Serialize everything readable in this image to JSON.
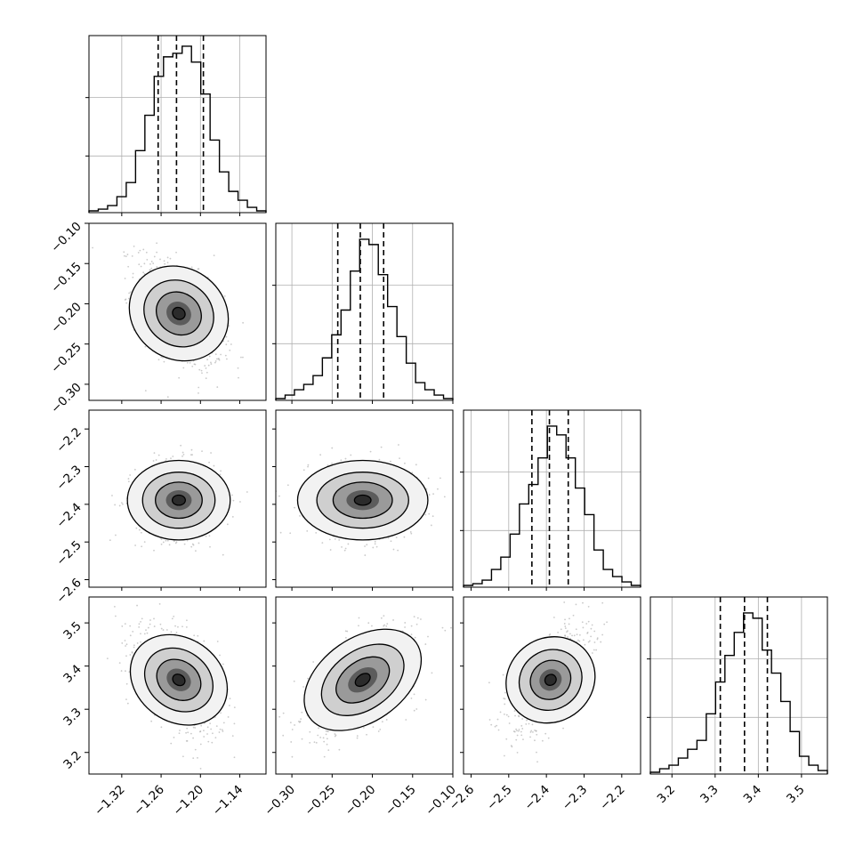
{
  "chart_data": {
    "type": "corner",
    "parameters": [
      {
        "range": [
          -1.37,
          -1.1
        ],
        "ticks": [
          -1.32,
          -1.26,
          -1.2,
          -1.14
        ],
        "tick_labels": [
          "−1.32",
          "−1.26",
          "−1.20",
          "−1.14"
        ],
        "quantiles": [
          -1.2645,
          -1.2365,
          -1.1955
        ],
        "hist": [
          1,
          2,
          4,
          9,
          17,
          35,
          55,
          77,
          88,
          90,
          94,
          85,
          67,
          41,
          23,
          12,
          7,
          3,
          1
        ]
      },
      {
        "range": [
          -0.32,
          -0.1
        ],
        "ticks": [
          -0.3,
          -0.25,
          -0.2,
          -0.15,
          -0.1
        ],
        "tick_labels": [
          "−0.30",
          "−0.25",
          "−0.20",
          "−0.15",
          "−0.10"
        ],
        "quantiles": [
          -0.243,
          -0.215,
          -0.186
        ],
        "hist": [
          1,
          3,
          6,
          9,
          14,
          24,
          37,
          51,
          73,
          91,
          88,
          71,
          53,
          36,
          21,
          10,
          6,
          3,
          1
        ]
      },
      {
        "range": [
          -2.62,
          -2.15
        ],
        "ticks": [
          -2.6,
          -2.5,
          -2.4,
          -2.3,
          -2.2
        ],
        "tick_labels": [
          "−2.6",
          "−2.5",
          "−2.4",
          "−2.3",
          "−2.2"
        ],
        "quantiles": [
          -2.4385,
          -2.392,
          -2.342
        ],
        "hist": [
          1,
          2,
          4,
          10,
          17,
          30,
          47,
          58,
          73,
          91,
          86,
          73,
          56,
          41,
          21,
          10,
          6,
          3,
          1
        ]
      },
      {
        "range": [
          3.15,
          3.56
        ],
        "ticks": [
          3.2,
          3.3,
          3.4,
          3.5
        ],
        "tick_labels": [
          "3.2",
          "3.3",
          "3.4",
          "3.5"
        ],
        "quantiles": [
          3.312,
          3.368,
          3.421
        ],
        "hist": [
          1,
          3,
          5,
          9,
          14,
          19,
          34,
          52,
          67,
          80,
          91,
          88,
          70,
          57,
          41,
          24,
          10,
          5,
          2
        ]
      }
    ],
    "pairs": [
      {
        "row": 1,
        "col": 0,
        "mean": [
          -1.233,
          -0.212
        ],
        "sd": [
          0.031,
          0.032
        ],
        "rho": -0.5
      },
      {
        "row": 2,
        "col": 0,
        "mean": [
          -1.233,
          -2.389
        ],
        "sd": [
          0.031,
          0.048
        ],
        "rho": 0.0
      },
      {
        "row": 2,
        "col": 1,
        "mean": [
          -0.212,
          -2.389
        ],
        "sd": [
          0.032,
          0.048
        ],
        "rho": 0.0
      },
      {
        "row": 3,
        "col": 0,
        "mean": [
          -1.233,
          3.368
        ],
        "sd": [
          0.031,
          0.055
        ],
        "rho": -0.5
      },
      {
        "row": 3,
        "col": 1,
        "mean": [
          -0.212,
          3.368
        ],
        "sd": [
          0.032,
          0.055
        ],
        "rho": 0.55
      },
      {
        "row": 3,
        "col": 2,
        "mean": [
          -2.389,
          3.368
        ],
        "sd": [
          0.048,
          0.055
        ],
        "rho": 0.58
      }
    ],
    "grid": true,
    "colors": {
      "hist": "#000000",
      "scatter": "#9e9e9e",
      "contour": "#000000",
      "axis": "#000000",
      "grid": "#b0b0b0"
    }
  }
}
